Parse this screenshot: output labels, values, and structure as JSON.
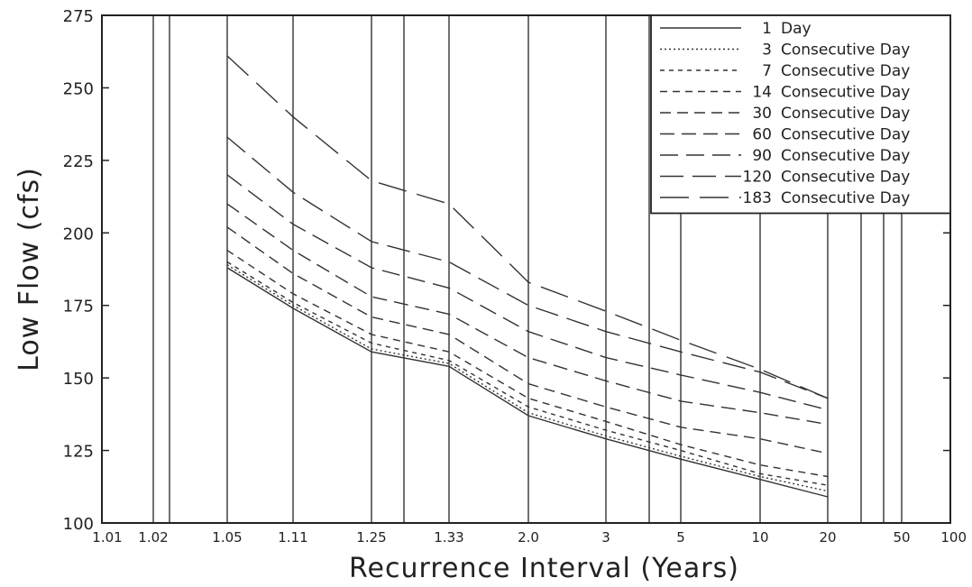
{
  "chart_data": {
    "type": "line",
    "xlabel": "Recurrence Interval (Years)",
    "ylabel": "Low Flow (cfs)",
    "x_scale": "probability",
    "ylim": [
      100,
      275
    ],
    "xlim": [
      1.01,
      100
    ],
    "grid": "vertical lines at x ticks",
    "legend_position": "top-right",
    "x_ticks": [
      {
        "value": 1.01,
        "label": "1.01"
      },
      {
        "value": 1.02,
        "label": "1.02"
      },
      {
        "value": 1.05,
        "label": "1.05"
      },
      {
        "value": 1.11,
        "label": "1.11"
      },
      {
        "value": 1.25,
        "label": "1.25"
      },
      {
        "value": 1.33,
        "label": "1.33"
      },
      {
        "value": 2,
        "label": "2.0"
      },
      {
        "value": 3,
        "label": "3"
      },
      {
        "value": 5,
        "label": "5"
      },
      {
        "value": 10,
        "label": "10"
      },
      {
        "value": 20,
        "label": "20"
      },
      {
        "value": 50,
        "label": "50"
      },
      {
        "value": 100,
        "label": "100"
      }
    ],
    "x_extra_gridlines": [
      1.03,
      1.3,
      4,
      30,
      40
    ],
    "y_ticks": [
      100,
      125,
      150,
      175,
      200,
      225,
      250,
      275
    ],
    "x": [
      1.05,
      1.11,
      1.25,
      1.33,
      2,
      3,
      5,
      10,
      20
    ],
    "series": [
      {
        "name": "1 Day",
        "dash": "",
        "values": [
          188,
          174,
          159,
          154,
          137,
          129,
          122,
          115,
          109
        ]
      },
      {
        "name": "3 Consecutive Day",
        "dash": "2,3",
        "values": [
          189,
          175,
          160,
          155,
          138,
          130,
          123,
          116,
          111
        ]
      },
      {
        "name": "7 Consecutive Day",
        "dash": "5,5",
        "values": [
          190,
          176,
          162,
          156,
          140,
          132,
          125,
          117,
          113
        ]
      },
      {
        "name": "14 Consecutive Day",
        "dash": "8,6",
        "values": [
          194,
          179,
          165,
          159,
          143,
          135,
          127,
          120,
          116
        ]
      },
      {
        "name": "30 Consecutive Day",
        "dash": "12,7",
        "values": [
          202,
          186,
          171,
          165,
          148,
          140,
          133,
          129,
          124
        ]
      },
      {
        "name": "60 Consecutive Day",
        "dash": "16,8",
        "values": [
          210,
          194,
          178,
          172,
          157,
          149,
          142,
          138,
          134
        ]
      },
      {
        "name": "90 Consecutive Day",
        "dash": "20,9",
        "values": [
          220,
          203,
          188,
          181,
          166,
          157,
          151,
          145,
          139
        ]
      },
      {
        "name": "120 Consecutive Day",
        "dash": "26,10",
        "values": [
          233,
          214,
          197,
          190,
          175,
          166,
          159,
          152,
          143
        ]
      },
      {
        "name": "183 Consecutive Day",
        "dash": "32,12",
        "values": [
          261,
          240,
          218,
          210,
          183,
          173,
          163,
          153,
          143
        ]
      }
    ]
  }
}
